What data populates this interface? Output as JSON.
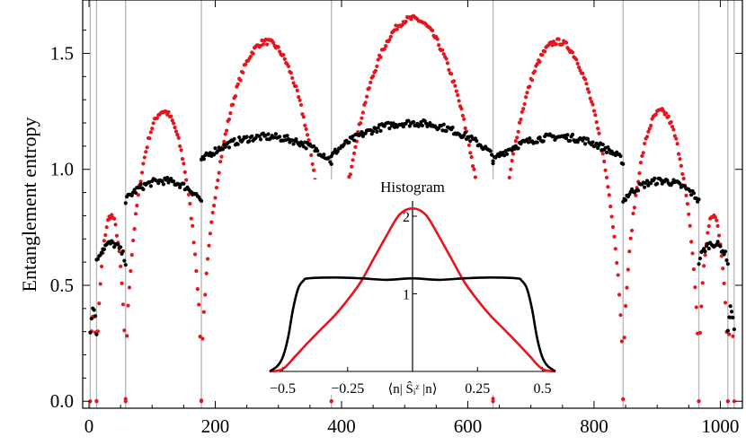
{
  "chart_data": {
    "type": "scatter",
    "title": "",
    "xlabel": "",
    "ylabel": "Entanglement entropy",
    "xlim": [
      -10,
      1035
    ],
    "ylim": [
      -0.03,
      1.73
    ],
    "xticks": [
      0,
      200,
      400,
      600,
      800,
      1000
    ],
    "xtick_labels": [
      "0",
      "200",
      "400",
      "600",
      "800",
      "1000"
    ],
    "yticks": [
      0.0,
      0.5,
      1.0,
      1.5
    ],
    "ytick_labels": [
      "0.0",
      "0.5",
      "1.0",
      "1.5"
    ],
    "vertical_lines_x": [
      2,
      12,
      58,
      178,
      384,
      640,
      846,
      966,
      1012,
      1022
    ],
    "series": [
      {
        "name": "red",
        "color": "#e8141b",
        "domes": [
          {
            "start": 2,
            "end": 12,
            "peak": 0.38
          },
          {
            "start": 12,
            "end": 58,
            "peak": 0.8
          },
          {
            "start": 58,
            "end": 178,
            "peak": 1.25
          },
          {
            "start": 178,
            "end": 384,
            "peak": 1.55
          },
          {
            "start": 384,
            "end": 640,
            "peak": 1.65
          },
          {
            "start": 640,
            "end": 846,
            "peak": 1.55
          },
          {
            "start": 846,
            "end": 966,
            "peak": 1.25
          },
          {
            "start": 966,
            "end": 1012,
            "peak": 0.8
          },
          {
            "start": 1012,
            "end": 1022,
            "peak": 0.38
          }
        ],
        "step": 2
      },
      {
        "name": "black",
        "color": "#000000",
        "segments": [
          {
            "start": 2,
            "end": 12,
            "edge": 0.3,
            "peak": 0.4
          },
          {
            "start": 12,
            "end": 58,
            "edge": 0.6,
            "peak": 0.68
          },
          {
            "start": 58,
            "end": 178,
            "edge": 0.86,
            "peak": 0.95
          },
          {
            "start": 178,
            "end": 384,
            "edge": 1.03,
            "peak": 1.14
          },
          {
            "start": 384,
            "end": 640,
            "edge": 1.05,
            "peak": 1.2
          },
          {
            "start": 640,
            "end": 846,
            "edge": 1.03,
            "peak": 1.14
          },
          {
            "start": 846,
            "end": 966,
            "edge": 0.86,
            "peak": 0.95
          },
          {
            "start": 966,
            "end": 1012,
            "edge": 0.6,
            "peak": 0.68
          },
          {
            "start": 1012,
            "end": 1022,
            "edge": 0.3,
            "peak": 0.4
          }
        ],
        "step": 2
      }
    ],
    "inset": {
      "type": "line",
      "title": "Histogram",
      "xlabel": "⟨n| Ŝᵢᶻ |n⟩",
      "xlim": [
        -0.55,
        0.55
      ],
      "ylim": [
        0,
        2.15
      ],
      "xticks": [
        -0.5,
        -0.25,
        0.25,
        0.5
      ],
      "xtick_labels": [
        "−0.5",
        "−0.25",
        "0.25",
        "0.5"
      ],
      "yticks": [
        1,
        2
      ],
      "ytick_labels": [
        "1",
        "2"
      ],
      "series": [
        {
          "name": "red",
          "color": "#e8141b",
          "x": [
            -0.55,
            -0.5,
            -0.45,
            -0.4,
            -0.35,
            -0.3,
            -0.25,
            -0.2,
            -0.15,
            -0.1,
            -0.05,
            0.0,
            0.05,
            0.1,
            0.15,
            0.2,
            0.25,
            0.3,
            0.35,
            0.4,
            0.45,
            0.5,
            0.55
          ],
          "y": [
            0.0,
            0.03,
            0.2,
            0.38,
            0.55,
            0.72,
            0.92,
            1.15,
            1.45,
            1.75,
            2.02,
            2.1,
            2.02,
            1.75,
            1.45,
            1.15,
            0.92,
            0.72,
            0.55,
            0.38,
            0.2,
            0.03,
            0.0
          ]
        },
        {
          "name": "black",
          "color": "#000000",
          "x": [
            -0.55,
            -0.52,
            -0.5,
            -0.48,
            -0.46,
            -0.44,
            -0.42,
            -0.4,
            -0.3,
            -0.2,
            -0.1,
            0.0,
            0.1,
            0.2,
            0.3,
            0.4,
            0.42,
            0.44,
            0.46,
            0.48,
            0.5,
            0.52,
            0.55
          ],
          "y": [
            0.0,
            0.07,
            0.18,
            0.42,
            0.8,
            1.07,
            1.17,
            1.2,
            1.21,
            1.2,
            1.18,
            1.2,
            1.18,
            1.2,
            1.21,
            1.2,
            1.17,
            1.07,
            0.8,
            0.42,
            0.18,
            0.07,
            0.0
          ]
        }
      ]
    }
  }
}
